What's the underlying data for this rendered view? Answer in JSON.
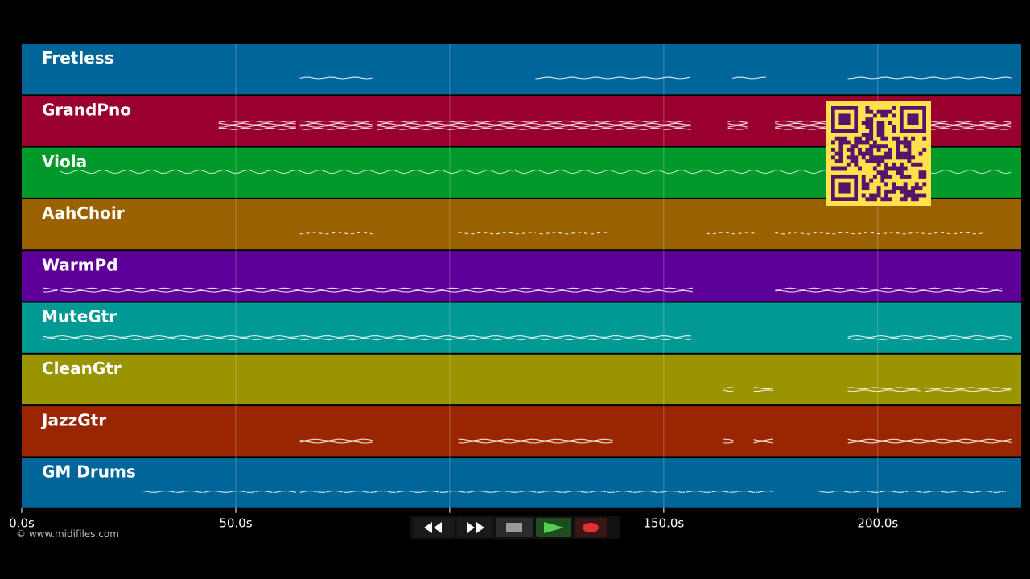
{
  "tracks": [
    {
      "name": "Fretless",
      "color": "#006699"
    },
    {
      "name": "GrandPno",
      "color": "#99002e"
    },
    {
      "name": "Viola",
      "color": "#00992a"
    },
    {
      "name": "AahChoir",
      "color": "#996100"
    },
    {
      "name": "WarmPd",
      "color": "#5c0099"
    },
    {
      "name": "MuteGtr",
      "color": "#009994"
    },
    {
      "name": "CleanGtr",
      "color": "#999400"
    },
    {
      "name": "JazzGtr",
      "color": "#992600"
    },
    {
      "name": "GM Drums",
      "color": "#006699"
    }
  ],
  "timeline": {
    "start_seconds": 0,
    "end_seconds": 233.5,
    "ticks": [
      {
        "value": 0,
        "label": "0.0s"
      },
      {
        "value": 50,
        "label": "50.0s"
      },
      {
        "value": 100,
        "label": "100.0s"
      },
      {
        "value": 150,
        "label": "150.0s"
      },
      {
        "value": 200,
        "label": "200.0s"
      }
    ]
  },
  "notes": {
    "Fretless": [
      [
        65,
        83
      ],
      [
        120,
        157
      ],
      [
        166,
        175
      ],
      [
        193,
        232
      ]
    ],
    "GrandPno": [
      [
        46,
        65
      ],
      [
        65,
        83
      ],
      [
        83,
        157
      ],
      [
        165,
        170
      ],
      [
        176,
        232
      ]
    ],
    "Viola": [
      [
        9,
        232
      ]
    ],
    "AahChoir": [
      [
        65,
        82
      ],
      [
        102,
        121
      ],
      [
        121,
        137
      ],
      [
        160,
        172
      ],
      [
        176,
        225
      ]
    ],
    "WarmPd": [
      [
        5,
        9
      ],
      [
        9,
        157
      ],
      [
        176,
        230
      ]
    ],
    "MuteGtr": [
      [
        5,
        65
      ],
      [
        65,
        157
      ],
      [
        193,
        232
      ]
    ],
    "CleanGtr": [
      [
        164,
        167
      ],
      [
        171,
        176
      ],
      [
        193,
        211
      ],
      [
        211,
        232
      ]
    ],
    "JazzGtr": [
      [
        65,
        83
      ],
      [
        102,
        139
      ],
      [
        164,
        167
      ],
      [
        171,
        176
      ],
      [
        193,
        232
      ]
    ],
    "GM Drums": [
      [
        28,
        65
      ],
      [
        65,
        176
      ],
      [
        186,
        232
      ]
    ]
  },
  "copyright": "© www.midifiles.com",
  "transport": {
    "rewind_icon": "rewind-icon",
    "fast_forward_icon": "fast-forward-icon",
    "stop_icon": "stop-icon",
    "play_icon": "play-icon",
    "record_icon": "record-icon",
    "play_color": "#55cc55",
    "record_color": "#dd3333"
  },
  "qr_code": {
    "icon": "qr-code-icon",
    "color": "#ffe14d",
    "dark": "#55146b"
  }
}
